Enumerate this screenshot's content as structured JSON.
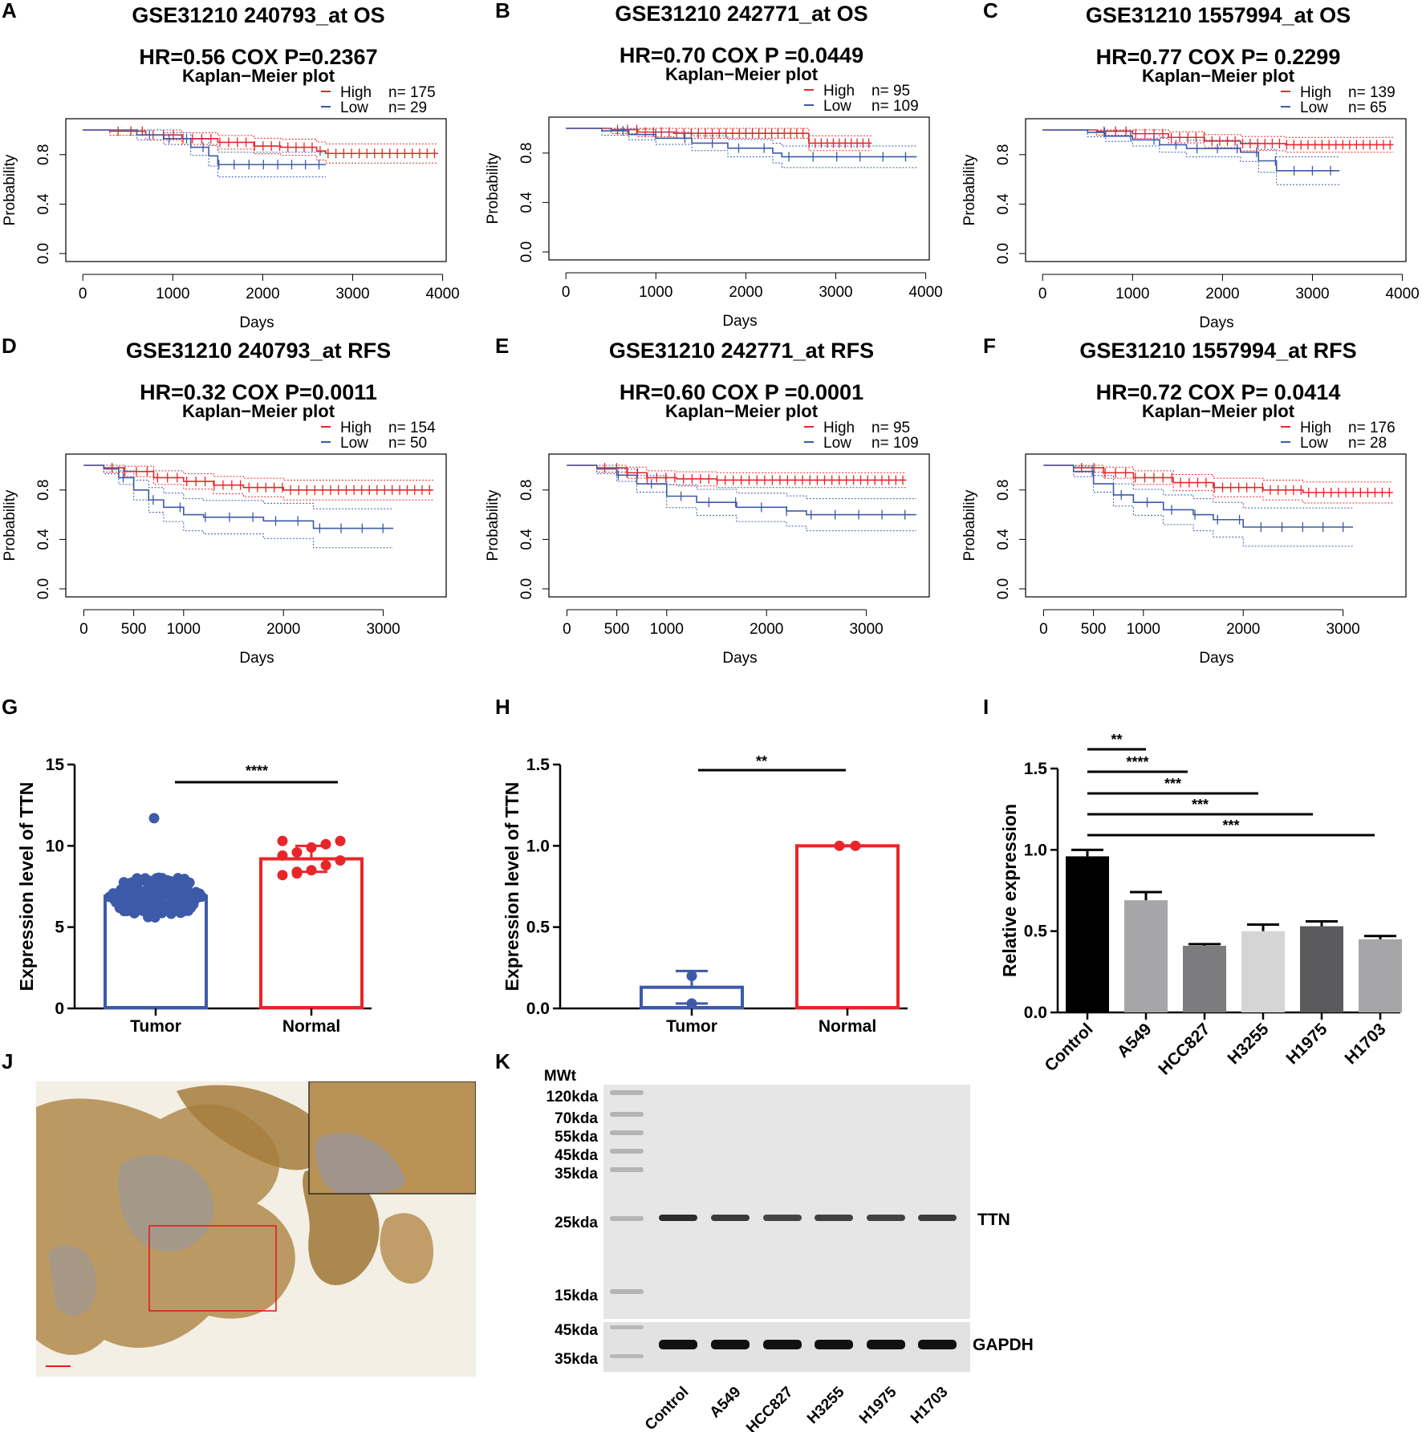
{
  "panels": {
    "A": "A",
    "B": "B",
    "C": "C",
    "D": "D",
    "E": "E",
    "F": "F",
    "G": "G",
    "H": "H",
    "I": "I",
    "J": "J",
    "K": "K"
  },
  "km_common": {
    "subtitle": "Kaplan−Meier plot",
    "ylabel": "Probability",
    "xlabel": "Days",
    "yticks": [
      "0.0",
      "0.4",
      "0.8"
    ],
    "high_label": "High",
    "low_label": "Low",
    "high_color": "#e8262a",
    "low_color": "#3d5aa8"
  },
  "chart_data": [
    {
      "id": "A",
      "type": "line",
      "title": "GSE31210  240793_at  OS",
      "stat": "HR=0.56 COX P=0.2367",
      "high_n": "n= 175",
      "low_n": "n= 29",
      "xlim": [
        -100,
        3950
      ],
      "ylim": [
        0,
        1
      ],
      "xticks": [
        0,
        1000,
        2000,
        3000,
        4000
      ],
      "series": [
        {
          "name": "High",
          "values": [
            [
              0,
              1
            ],
            [
              300,
              0.99
            ],
            [
              700,
              0.96
            ],
            [
              1100,
              0.93
            ],
            [
              1500,
              0.9
            ],
            [
              1900,
              0.87
            ],
            [
              2200,
              0.86
            ],
            [
              2600,
              0.83
            ],
            [
              2700,
              0.81
            ],
            [
              3950,
              0.81
            ]
          ]
        },
        {
          "name": "Low",
          "values": [
            [
              0,
              1
            ],
            [
              600,
              1
            ],
            [
              600,
              0.96
            ],
            [
              900,
              0.96
            ],
            [
              900,
              0.93
            ],
            [
              1200,
              0.93
            ],
            [
              1200,
              0.86
            ],
            [
              1400,
              0.86
            ],
            [
              1400,
              0.79
            ],
            [
              1500,
              0.79
            ],
            [
              1500,
              0.72
            ],
            [
              2700,
              0.72
            ]
          ]
        }
      ]
    },
    {
      "id": "B",
      "type": "line",
      "title": "GSE31210 242771_at OS",
      "stat": "HR=0.70 COX P =0.0449",
      "high_n": "n= 95",
      "low_n": "n= 109",
      "xlim": [
        -100,
        3950
      ],
      "ylim": [
        0,
        1
      ],
      "xticks": [
        0,
        1000,
        2000,
        3000,
        4000
      ],
      "series": [
        {
          "name": "High",
          "values": [
            [
              0,
              1
            ],
            [
              500,
              0.99
            ],
            [
              800,
              0.97
            ],
            [
              1200,
              0.96
            ],
            [
              2700,
              0.95
            ],
            [
              2700,
              0.88
            ],
            [
              3400,
              0.88
            ]
          ]
        },
        {
          "name": "Low",
          "values": [
            [
              0,
              1
            ],
            [
              400,
              0.98
            ],
            [
              700,
              0.95
            ],
            [
              1000,
              0.92
            ],
            [
              1400,
              0.88
            ],
            [
              1800,
              0.84
            ],
            [
              2300,
              0.8
            ],
            [
              2400,
              0.77
            ],
            [
              3900,
              0.77
            ]
          ]
        }
      ]
    },
    {
      "id": "C",
      "type": "line",
      "title": "GSE31210 1557994_at OS",
      "stat": "HR=0.77 COX P= 0.2299",
      "high_n": "n= 139",
      "low_n": "n= 65",
      "xlim": [
        -100,
        3950
      ],
      "ylim": [
        0,
        1
      ],
      "xticks": [
        0,
        1000,
        2000,
        3000,
        4000
      ],
      "series": [
        {
          "name": "High",
          "values": [
            [
              0,
              1
            ],
            [
              600,
              0.99
            ],
            [
              1000,
              0.97
            ],
            [
              1400,
              0.94
            ],
            [
              1800,
              0.91
            ],
            [
              2200,
              0.89
            ],
            [
              2700,
              0.88
            ],
            [
              3900,
              0.88
            ]
          ]
        },
        {
          "name": "Low",
          "values": [
            [
              0,
              1
            ],
            [
              500,
              0.98
            ],
            [
              700,
              0.95
            ],
            [
              1000,
              0.92
            ],
            [
              1300,
              0.88
            ],
            [
              1600,
              0.85
            ],
            [
              2200,
              0.82
            ],
            [
              2400,
              0.75
            ],
            [
              2600,
              0.75
            ],
            [
              2600,
              0.67
            ],
            [
              3300,
              0.67
            ]
          ]
        }
      ]
    },
    {
      "id": "D",
      "type": "line",
      "title": "GSE31210  240793_at  RFS",
      "stat": "HR=0.32 COX P=0.0011",
      "high_n": "n= 154",
      "low_n": "n= 50",
      "xlim": [
        -100,
        3550
      ],
      "ylim": [
        0,
        1
      ],
      "xticks": [
        0,
        500,
        1000,
        2000,
        3000
      ],
      "series": [
        {
          "name": "High",
          "values": [
            [
              0,
              1
            ],
            [
              200,
              0.98
            ],
            [
              400,
              0.95
            ],
            [
              700,
              0.9
            ],
            [
              1000,
              0.87
            ],
            [
              1300,
              0.84
            ],
            [
              1600,
              0.82
            ],
            [
              2000,
              0.8
            ],
            [
              2500,
              0.8
            ],
            [
              3500,
              0.8
            ]
          ]
        },
        {
          "name": "Low",
          "values": [
            [
              0,
              1
            ],
            [
              200,
              0.97
            ],
            [
              350,
              0.9
            ],
            [
              500,
              0.8
            ],
            [
              650,
              0.72
            ],
            [
              800,
              0.66
            ],
            [
              1000,
              0.6
            ],
            [
              1200,
              0.58
            ],
            [
              1800,
              0.55
            ],
            [
              2300,
              0.55
            ],
            [
              2300,
              0.49
            ],
            [
              3100,
              0.49
            ]
          ]
        }
      ]
    },
    {
      "id": "E",
      "type": "line",
      "title": "GSE31210 242771_at RFS",
      "stat": "HR=0.60 COX P =0.0001",
      "high_n": "n= 95",
      "low_n": "n= 109",
      "xlim": [
        -100,
        3550
      ],
      "ylim": [
        0,
        1
      ],
      "xticks": [
        0,
        500,
        1000,
        2000,
        3000
      ],
      "series": [
        {
          "name": "High",
          "values": [
            [
              0,
              1
            ],
            [
              300,
              0.98
            ],
            [
              600,
              0.94
            ],
            [
              800,
              0.9
            ],
            [
              1100,
              0.89
            ],
            [
              1500,
              0.88
            ],
            [
              3400,
              0.88
            ]
          ]
        },
        {
          "name": "Low",
          "values": [
            [
              0,
              1
            ],
            [
              300,
              0.97
            ],
            [
              500,
              0.92
            ],
            [
              700,
              0.85
            ],
            [
              1000,
              0.75
            ],
            [
              1300,
              0.7
            ],
            [
              1700,
              0.66
            ],
            [
              2200,
              0.63
            ],
            [
              2400,
              0.6
            ],
            [
              3500,
              0.6
            ]
          ]
        }
      ]
    },
    {
      "id": "F",
      "type": "line",
      "title": "GSE31210 1557994_at RFS",
      "stat": "HR=0.72 COX P= 0.0414",
      "high_n": "n= 176",
      "low_n": "n= 28",
      "xlim": [
        -100,
        3550
      ],
      "ylim": [
        0,
        1
      ],
      "xticks": [
        0,
        500,
        1000,
        2000,
        3000
      ],
      "series": [
        {
          "name": "High",
          "values": [
            [
              0,
              1
            ],
            [
              300,
              0.98
            ],
            [
              600,
              0.94
            ],
            [
              900,
              0.9
            ],
            [
              1300,
              0.86
            ],
            [
              1700,
              0.82
            ],
            [
              2200,
              0.8
            ],
            [
              2600,
              0.78
            ],
            [
              3500,
              0.78
            ]
          ]
        },
        {
          "name": "Low",
          "values": [
            [
              0,
              1
            ],
            [
              300,
              0.95
            ],
            [
              500,
              0.85
            ],
            [
              700,
              0.76
            ],
            [
              900,
              0.7
            ],
            [
              1200,
              0.64
            ],
            [
              1500,
              0.6
            ],
            [
              1700,
              0.56
            ],
            [
              2000,
              0.5
            ],
            [
              3100,
              0.5
            ]
          ]
        }
      ]
    },
    {
      "id": "G",
      "type": "bar",
      "ylabel": "Expression level of TTN",
      "ylim": [
        0,
        15
      ],
      "yticks": [
        "0",
        "5",
        "10",
        "15"
      ],
      "categories": [
        "Tumor",
        "Normal"
      ],
      "values": [
        6.9,
        9.2
      ],
      "errors": [
        0.8,
        0.8
      ],
      "colors": [
        "#3d5aa8",
        "#e8262a"
      ],
      "significance": "****",
      "points": {
        "Normal": [
          8.2,
          8.3,
          8.5,
          8.8,
          9.1,
          9.4,
          9.6,
          9.9,
          10.1,
          10.3,
          10.3,
          8.4
        ]
      }
    },
    {
      "id": "H",
      "type": "bar",
      "ylabel": "Expression level of TTN",
      "ylim": [
        0,
        1.5
      ],
      "yticks": [
        "0.0",
        "0.5",
        "1.0",
        "1.5"
      ],
      "categories": [
        "Tumor",
        "Normal"
      ],
      "values": [
        0.13,
        1.0
      ],
      "errors": [
        0.1,
        0.0
      ],
      "colors": [
        "#3d5aa8",
        "#e8262a"
      ],
      "significance": "**",
      "points": {
        "Tumor": [
          0.2,
          0.03
        ],
        "Normal": [
          1.0,
          1.0
        ]
      }
    },
    {
      "id": "I",
      "type": "bar",
      "ylabel": "Relative expression",
      "ylim": [
        0,
        1.5
      ],
      "yticks": [
        "0.0",
        "0.5",
        "1.0",
        "1.5"
      ],
      "categories": [
        "Control",
        "A549",
        "HCC827",
        "H3255",
        "H1975",
        "H1703"
      ],
      "values": [
        0.96,
        0.69,
        0.41,
        0.5,
        0.53,
        0.45
      ],
      "errors": [
        0.04,
        0.05,
        0.01,
        0.04,
        0.03,
        0.02
      ],
      "colors": [
        "#000000",
        "#a6a6a8",
        "#7c7c7e",
        "#d5d5d6",
        "#5b5b5d",
        "#a6a6a8"
      ],
      "significance": [
        "**",
        "****",
        "***",
        "***",
        "***"
      ]
    }
  ],
  "wb": {
    "mwt_title": "MWt",
    "markers": [
      "120kda",
      "70kda",
      "55kda",
      "45kda",
      "35kda",
      "25kda",
      "15kda"
    ],
    "gapdh_markers": [
      "45kda",
      "35kda"
    ],
    "protein_top": "TTN",
    "protein_bottom": "GAPDH",
    "lanes": [
      "Control",
      "A549",
      "HCC827",
      "H3255",
      "H1975",
      "H1703"
    ]
  }
}
